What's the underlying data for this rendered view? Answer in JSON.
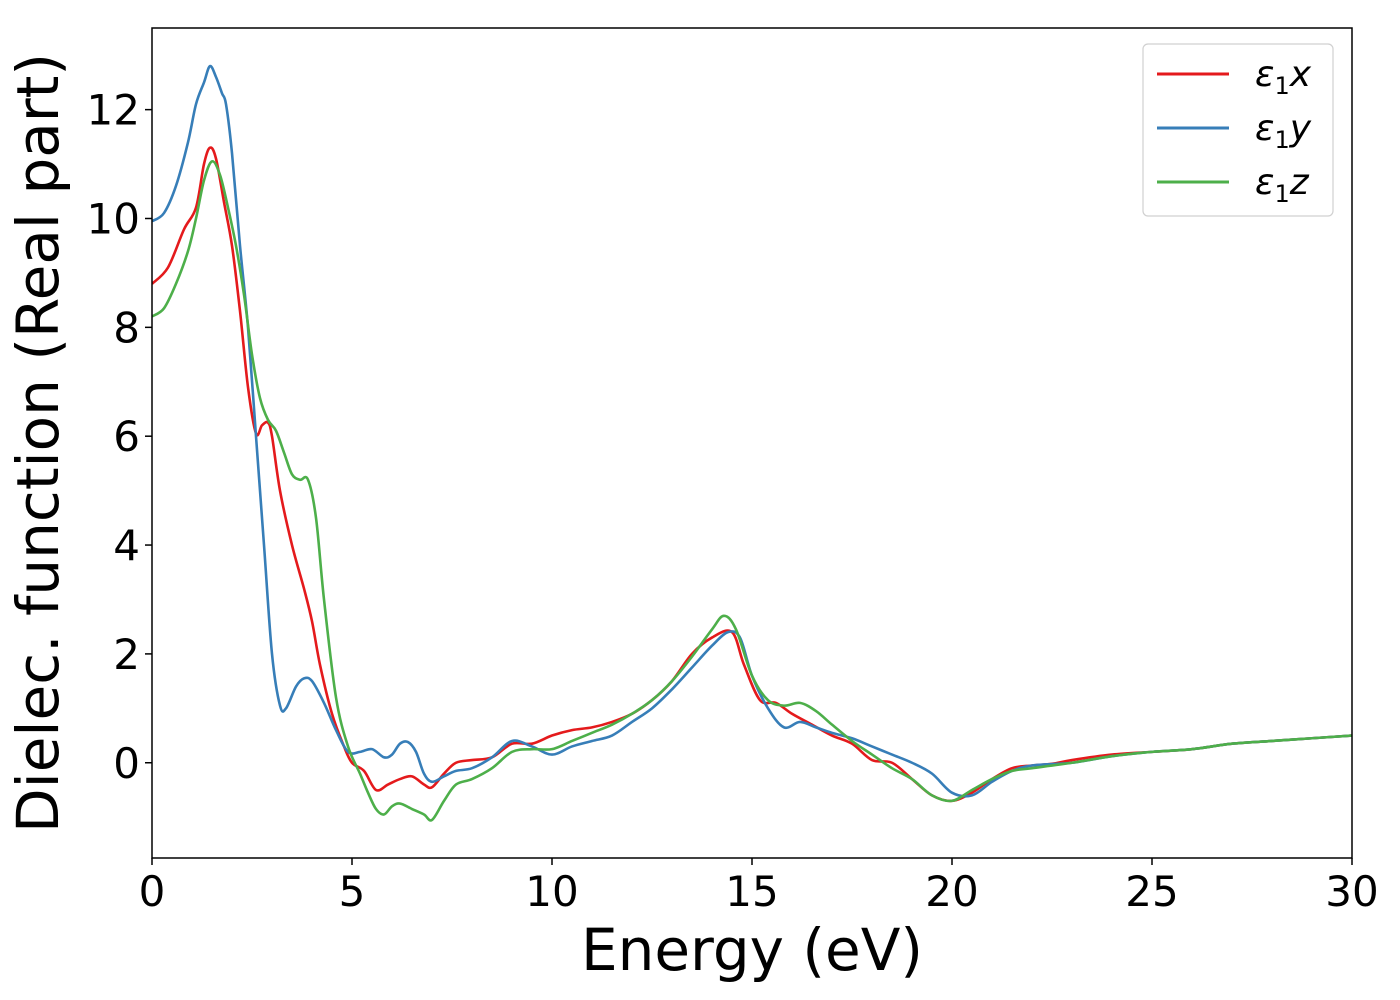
{
  "chart_data": {
    "type": "line",
    "xlabel": "Energy (eV)",
    "ylabel": "Dielec. function (Real part)",
    "xlim": [
      0,
      30
    ],
    "ylim": [
      -1.75,
      13.5
    ],
    "xticks": [
      0,
      5,
      10,
      15,
      20,
      25,
      30
    ],
    "yticks": [
      0,
      2,
      4,
      6,
      8,
      10,
      12
    ],
    "grid": false,
    "legend_position": "top-right",
    "series": [
      {
        "name": "ε1x",
        "legend": {
          "symbol": "ε",
          "sub": "1",
          "suffix": "x"
        },
        "color": "#e41a1c",
        "points": [
          [
            0,
            8.8
          ],
          [
            0.4,
            9.1
          ],
          [
            0.8,
            9.8
          ],
          [
            1.1,
            10.2
          ],
          [
            1.3,
            11.0
          ],
          [
            1.45,
            11.3
          ],
          [
            1.6,
            11.1
          ],
          [
            1.8,
            10.3
          ],
          [
            2.0,
            9.5
          ],
          [
            2.2,
            8.3
          ],
          [
            2.4,
            6.9
          ],
          [
            2.6,
            6.05
          ],
          [
            2.75,
            6.2
          ],
          [
            2.9,
            6.25
          ],
          [
            3.0,
            6.0
          ],
          [
            3.2,
            5.0
          ],
          [
            3.5,
            4.0
          ],
          [
            3.8,
            3.2
          ],
          [
            4.0,
            2.6
          ],
          [
            4.2,
            1.8
          ],
          [
            4.5,
            0.9
          ],
          [
            4.8,
            0.3
          ],
          [
            5.0,
            0.0
          ],
          [
            5.3,
            -0.15
          ],
          [
            5.6,
            -0.5
          ],
          [
            5.9,
            -0.4
          ],
          [
            6.2,
            -0.3
          ],
          [
            6.5,
            -0.25
          ],
          [
            6.8,
            -0.4
          ],
          [
            7.0,
            -0.45
          ],
          [
            7.3,
            -0.2
          ],
          [
            7.6,
            0.0
          ],
          [
            8.0,
            0.05
          ],
          [
            8.5,
            0.1
          ],
          [
            9.0,
            0.35
          ],
          [
            9.5,
            0.35
          ],
          [
            10.0,
            0.5
          ],
          [
            10.5,
            0.6
          ],
          [
            11.0,
            0.65
          ],
          [
            11.5,
            0.75
          ],
          [
            12.0,
            0.9
          ],
          [
            12.5,
            1.15
          ],
          [
            13.0,
            1.5
          ],
          [
            13.5,
            2.0
          ],
          [
            14.0,
            2.3
          ],
          [
            14.5,
            2.4
          ],
          [
            14.8,
            1.8
          ],
          [
            15.2,
            1.15
          ],
          [
            15.6,
            1.1
          ],
          [
            16.0,
            0.9
          ],
          [
            16.5,
            0.7
          ],
          [
            17.0,
            0.5
          ],
          [
            17.5,
            0.35
          ],
          [
            18.0,
            0.05
          ],
          [
            18.5,
            0.0
          ],
          [
            19.0,
            -0.3
          ],
          [
            19.5,
            -0.6
          ],
          [
            20.0,
            -0.7
          ],
          [
            20.5,
            -0.55
          ],
          [
            21.0,
            -0.3
          ],
          [
            21.5,
            -0.1
          ],
          [
            22.0,
            -0.05
          ],
          [
            22.5,
            -0.02
          ],
          [
            23.0,
            0.05
          ],
          [
            24.0,
            0.15
          ],
          [
            25.0,
            0.2
          ],
          [
            26.0,
            0.25
          ],
          [
            27.0,
            0.35
          ],
          [
            28.0,
            0.4
          ],
          [
            29.0,
            0.45
          ],
          [
            30.0,
            0.5
          ]
        ]
      },
      {
        "name": "ε1y",
        "legend": {
          "symbol": "ε",
          "sub": "1",
          "suffix": "y"
        },
        "color": "#377eb8",
        "points": [
          [
            0,
            9.95
          ],
          [
            0.3,
            10.1
          ],
          [
            0.6,
            10.6
          ],
          [
            0.9,
            11.4
          ],
          [
            1.1,
            12.1
          ],
          [
            1.3,
            12.5
          ],
          [
            1.45,
            12.8
          ],
          [
            1.6,
            12.6
          ],
          [
            1.75,
            12.3
          ],
          [
            1.85,
            12.1
          ],
          [
            2.0,
            11.2
          ],
          [
            2.2,
            9.5
          ],
          [
            2.4,
            8.0
          ],
          [
            2.6,
            6.0
          ],
          [
            2.8,
            4.0
          ],
          [
            3.0,
            2.0
          ],
          [
            3.2,
            1.05
          ],
          [
            3.35,
            1.0
          ],
          [
            3.6,
            1.4
          ],
          [
            3.8,
            1.55
          ],
          [
            4.0,
            1.5
          ],
          [
            4.3,
            1.1
          ],
          [
            4.6,
            0.6
          ],
          [
            4.9,
            0.2
          ],
          [
            5.2,
            0.2
          ],
          [
            5.5,
            0.25
          ],
          [
            5.8,
            0.1
          ],
          [
            6.0,
            0.15
          ],
          [
            6.2,
            0.35
          ],
          [
            6.4,
            0.38
          ],
          [
            6.6,
            0.2
          ],
          [
            6.8,
            -0.2
          ],
          [
            7.0,
            -0.35
          ],
          [
            7.3,
            -0.25
          ],
          [
            7.6,
            -0.15
          ],
          [
            8.0,
            -0.1
          ],
          [
            8.5,
            0.1
          ],
          [
            9.0,
            0.4
          ],
          [
            9.5,
            0.3
          ],
          [
            10.0,
            0.15
          ],
          [
            10.5,
            0.3
          ],
          [
            11.0,
            0.4
          ],
          [
            11.5,
            0.5
          ],
          [
            12.0,
            0.75
          ],
          [
            12.5,
            1.0
          ],
          [
            13.0,
            1.35
          ],
          [
            13.5,
            1.75
          ],
          [
            14.0,
            2.15
          ],
          [
            14.4,
            2.4
          ],
          [
            14.7,
            2.3
          ],
          [
            15.0,
            1.6
          ],
          [
            15.4,
            1.0
          ],
          [
            15.8,
            0.65
          ],
          [
            16.2,
            0.75
          ],
          [
            16.6,
            0.65
          ],
          [
            17.0,
            0.55
          ],
          [
            17.5,
            0.45
          ],
          [
            18.0,
            0.3
          ],
          [
            18.5,
            0.15
          ],
          [
            19.0,
            0.0
          ],
          [
            19.5,
            -0.2
          ],
          [
            20.0,
            -0.55
          ],
          [
            20.5,
            -0.6
          ],
          [
            21.0,
            -0.35
          ],
          [
            21.5,
            -0.15
          ],
          [
            22.0,
            -0.05
          ],
          [
            23.0,
            0.0
          ],
          [
            24.0,
            0.12
          ],
          [
            25.0,
            0.2
          ],
          [
            26.0,
            0.25
          ],
          [
            27.0,
            0.35
          ],
          [
            28.0,
            0.4
          ],
          [
            29.0,
            0.45
          ],
          [
            30.0,
            0.5
          ]
        ]
      },
      {
        "name": "ε1z",
        "legend": {
          "symbol": "ε",
          "sub": "1",
          "suffix": "z"
        },
        "color": "#4daf4a",
        "points": [
          [
            0,
            8.2
          ],
          [
            0.3,
            8.35
          ],
          [
            0.6,
            8.8
          ],
          [
            0.9,
            9.4
          ],
          [
            1.1,
            10.0
          ],
          [
            1.3,
            10.7
          ],
          [
            1.5,
            11.05
          ],
          [
            1.7,
            10.8
          ],
          [
            1.9,
            10.2
          ],
          [
            2.1,
            9.5
          ],
          [
            2.3,
            8.6
          ],
          [
            2.5,
            7.5
          ],
          [
            2.7,
            6.7
          ],
          [
            2.9,
            6.3
          ],
          [
            3.1,
            6.1
          ],
          [
            3.3,
            5.7
          ],
          [
            3.5,
            5.3
          ],
          [
            3.7,
            5.2
          ],
          [
            3.9,
            5.2
          ],
          [
            4.1,
            4.5
          ],
          [
            4.3,
            3.0
          ],
          [
            4.6,
            1.2
          ],
          [
            4.9,
            0.3
          ],
          [
            5.2,
            -0.2
          ],
          [
            5.4,
            -0.55
          ],
          [
            5.6,
            -0.85
          ],
          [
            5.8,
            -0.95
          ],
          [
            6.0,
            -0.8
          ],
          [
            6.2,
            -0.75
          ],
          [
            6.5,
            -0.85
          ],
          [
            6.8,
            -0.95
          ],
          [
            7.0,
            -1.05
          ],
          [
            7.3,
            -0.7
          ],
          [
            7.6,
            -0.4
          ],
          [
            8.0,
            -0.3
          ],
          [
            8.5,
            -0.1
          ],
          [
            9.0,
            0.2
          ],
          [
            9.5,
            0.25
          ],
          [
            10.0,
            0.25
          ],
          [
            10.5,
            0.4
          ],
          [
            11.0,
            0.55
          ],
          [
            11.5,
            0.7
          ],
          [
            12.0,
            0.9
          ],
          [
            12.5,
            1.15
          ],
          [
            13.0,
            1.5
          ],
          [
            13.5,
            1.95
          ],
          [
            14.0,
            2.45
          ],
          [
            14.3,
            2.7
          ],
          [
            14.6,
            2.45
          ],
          [
            15.0,
            1.6
          ],
          [
            15.4,
            1.15
          ],
          [
            15.8,
            1.05
          ],
          [
            16.2,
            1.1
          ],
          [
            16.6,
            0.95
          ],
          [
            17.0,
            0.7
          ],
          [
            17.5,
            0.4
          ],
          [
            18.0,
            0.15
          ],
          [
            18.5,
            -0.1
          ],
          [
            19.0,
            -0.3
          ],
          [
            19.5,
            -0.6
          ],
          [
            20.0,
            -0.7
          ],
          [
            20.5,
            -0.5
          ],
          [
            21.0,
            -0.3
          ],
          [
            21.5,
            -0.15
          ],
          [
            22.0,
            -0.1
          ],
          [
            23.0,
            0.0
          ],
          [
            24.0,
            0.12
          ],
          [
            25.0,
            0.2
          ],
          [
            26.0,
            0.25
          ],
          [
            27.0,
            0.35
          ],
          [
            28.0,
            0.4
          ],
          [
            29.0,
            0.45
          ],
          [
            30.0,
            0.5
          ]
        ]
      }
    ]
  }
}
